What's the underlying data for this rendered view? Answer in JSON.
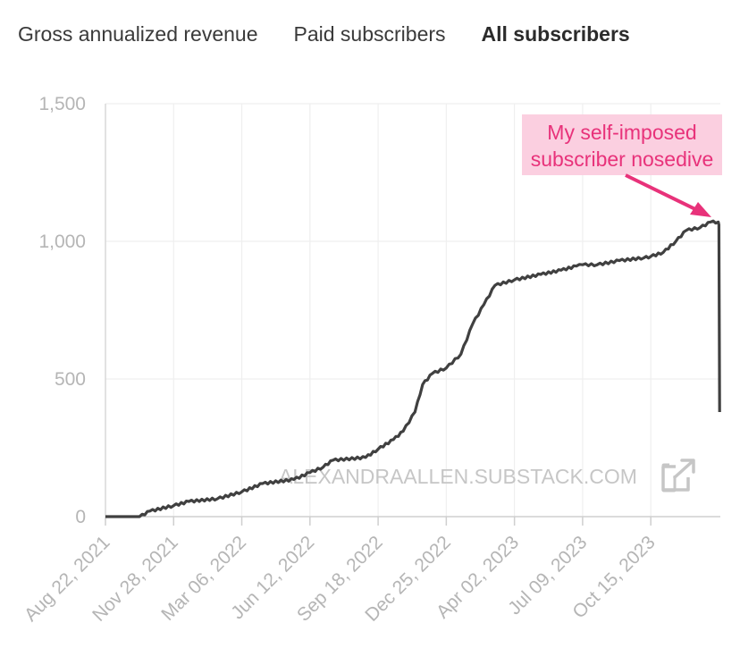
{
  "tabs": [
    {
      "label": "Gross annualized revenue",
      "active": false
    },
    {
      "label": "Paid subscribers",
      "active": false
    },
    {
      "label": "All subscribers",
      "active": true
    }
  ],
  "watermark": "ALEXANDRAALLEN.SUBSTACK.COM",
  "external_link_icon": "external-link-icon",
  "chart_data": {
    "type": "line",
    "title": "",
    "xlabel": "",
    "ylabel": "",
    "ylim": [
      0,
      1500
    ],
    "yticks": [
      0,
      500,
      1000,
      1500
    ],
    "ytick_labels": [
      "0",
      "500",
      "1,000",
      "1,500"
    ],
    "xlim": [
      "2021-08-22",
      "2024-01-23"
    ],
    "xticks": [
      "2021-08-22",
      "2021-11-28",
      "2022-03-06",
      "2022-06-12",
      "2022-09-18",
      "2022-12-25",
      "2023-04-02",
      "2023-07-09",
      "2023-10-15"
    ],
    "xtick_labels": [
      "Aug 22, 2021",
      "Nov 28, 2021",
      "Mar 06, 2022",
      "Jun 12, 2022",
      "Sep 18, 2022",
      "Dec 25, 2022",
      "Apr 02, 2023",
      "Jul 09, 2023",
      "Oct 15, 2023"
    ],
    "grid": true,
    "line_color": "#404040",
    "series": [
      {
        "x": [
          "2021-08-22",
          "2021-10-10",
          "2021-10-25",
          "2021-11-28",
          "2021-12-20",
          "2022-01-30",
          "2022-03-06",
          "2022-04-05",
          "2022-05-20",
          "2022-06-12",
          "2022-07-01",
          "2022-07-15",
          "2022-08-31",
          "2022-09-18",
          "2022-10-10",
          "2022-10-24",
          "2022-11-10",
          "2022-11-21",
          "2022-12-05",
          "2022-12-25",
          "2023-01-15",
          "2023-02-01",
          "2023-02-17",
          "2023-03-05",
          "2023-04-02",
          "2023-05-10",
          "2023-06-08",
          "2023-06-30",
          "2023-07-09",
          "2023-07-30",
          "2023-08-31",
          "2023-10-05",
          "2023-10-15",
          "2023-11-02",
          "2023-11-20",
          "2023-12-05",
          "2023-12-25",
          "2024-01-09",
          "2024-01-20",
          "2024-01-21",
          "2024-01-22"
        ],
        "y": [
          0,
          0,
          20,
          40,
          55,
          65,
          90,
          120,
          135,
          160,
          180,
          205,
          215,
          245,
          280,
          310,
          380,
          480,
          520,
          540,
          590,
          700,
          770,
          840,
          860,
          880,
          895,
          910,
          915,
          915,
          930,
          940,
          945,
          960,
          1000,
          1040,
          1050,
          1070,
          1070,
          1060,
          380
        ]
      }
    ],
    "annotation": {
      "text_lines": [
        "My self-imposed",
        "subscriber nosedive"
      ],
      "color": "#e8327a",
      "background": "#fbcfe0",
      "points_to": {
        "x": "2024-01-12",
        "y": 1075
      }
    }
  }
}
